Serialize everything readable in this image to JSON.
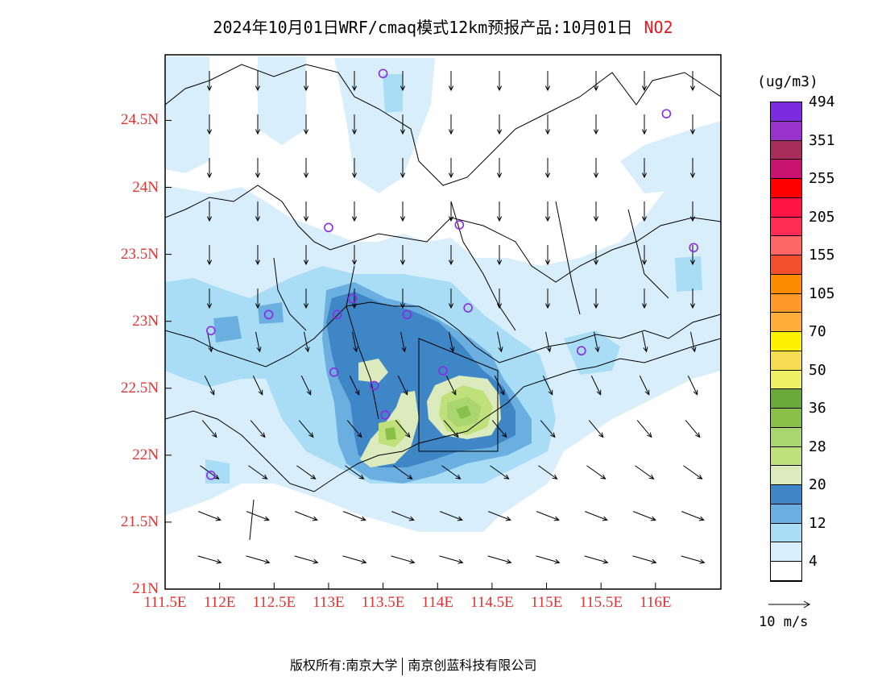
{
  "title": {
    "main": "2024年10月01日WRF/cmaq模式12km预报产品:10月01日",
    "pollutant": "NO2"
  },
  "map": {
    "lat_labels": [
      "24.5N",
      "24N",
      "23.5N",
      "23N",
      "22.5N",
      "22N",
      "21.5N",
      "21N"
    ],
    "lon_labels": [
      "111.5E",
      "112E",
      "112.5E",
      "113E",
      "113.5E",
      "114E",
      "114.5E",
      "115E",
      "115.5E",
      "116E"
    ],
    "extent": {
      "lon_min": 111.5,
      "lon_max": 116.6,
      "lat_min": 21.0,
      "lat_max": 24.99
    },
    "stations": [
      [
        113.5,
        24.85
      ],
      [
        116.1,
        24.55
      ],
      [
        113.0,
        23.7
      ],
      [
        114.2,
        23.72
      ],
      [
        116.35,
        23.55
      ],
      [
        112.45,
        23.05
      ],
      [
        111.92,
        22.93
      ],
      [
        113.08,
        23.05
      ],
      [
        113.22,
        23.17
      ],
      [
        113.72,
        23.05
      ],
      [
        114.28,
        23.1
      ],
      [
        115.32,
        22.78
      ],
      [
        113.05,
        22.62
      ],
      [
        113.42,
        22.52
      ],
      [
        114.05,
        22.63
      ],
      [
        113.52,
        22.3
      ],
      [
        111.92,
        21.85
      ]
    ]
  },
  "colorbar": {
    "units": "(ug/m3)",
    "colors_bottom_to_top": [
      "#ffffff",
      "#d8eefa",
      "#a9dcf5",
      "#6aafe0",
      "#3f86c6",
      "#dcebbe",
      "#c0e07c",
      "#aad670",
      "#88c04a",
      "#6aa83a",
      "#f0f065",
      "#f6dc50",
      "#fff200",
      "#ffae3c",
      "#ff9a28",
      "#ff8c00",
      "#f2502a",
      "#ff6666",
      "#ff2d55",
      "#ff1446",
      "#ff0000",
      "#c8146e",
      "#a82d5a",
      "#9932cc",
      "#7c2be0"
    ],
    "labels": [
      "4",
      "12",
      "20",
      "28",
      "36",
      "50",
      "70",
      "105",
      "155",
      "205",
      "255",
      "351",
      "494"
    ]
  },
  "vector_reference": {
    "label": "10 m/s"
  },
  "copyright": {
    "left": "版权所有:南京大学",
    "right": "南京创蓝科技有限公司"
  }
}
